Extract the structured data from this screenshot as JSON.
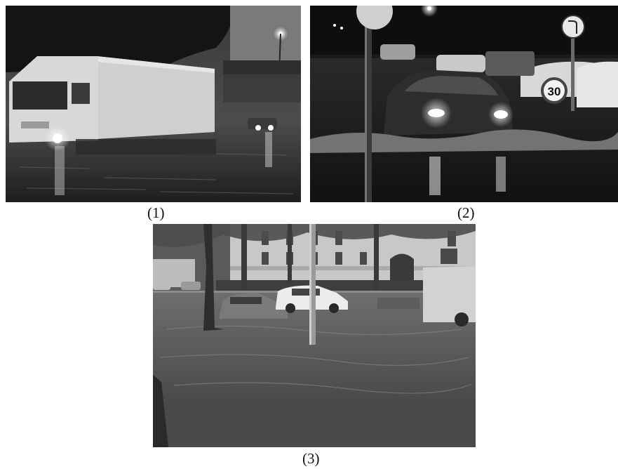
{
  "figures": [
    {
      "caption": "(1)",
      "subject": "truck-driving-through-flooded-street-at-night"
    },
    {
      "caption": "(2)",
      "subject": "car-with-headlights-in-flooded-street-at-night"
    },
    {
      "caption": "(3)",
      "subject": "flooded-street-with-trees-and-parked-cars-daytime"
    }
  ],
  "palette": {
    "background": "#ffffff",
    "caption_text": "#111111"
  },
  "signs": {
    "speed_limit": "30"
  }
}
